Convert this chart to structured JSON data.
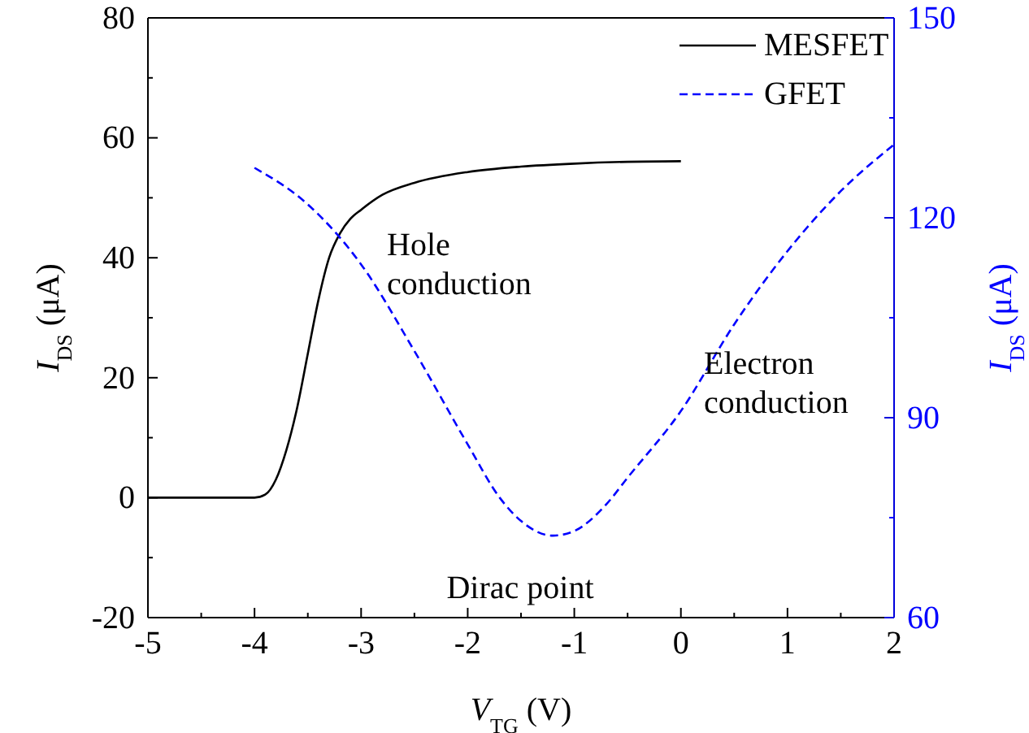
{
  "chart_data": {
    "type": "line",
    "xlabel": "V$_{TG}$ (V)",
    "ylabel": "I$_{DS}$ (μA)",
    "y2label": "I$_{DS}$ (μA)",
    "xlim": [
      -5,
      2
    ],
    "xticks": [
      -5,
      -4,
      -3,
      -2,
      -1,
      0,
      1,
      2
    ],
    "ylim": [
      -20,
      80
    ],
    "yticks": [
      -20,
      0,
      20,
      40,
      60,
      80
    ],
    "y2lim": [
      60,
      150
    ],
    "y2ticks": [
      60,
      90,
      120,
      150
    ],
    "legend": "top right",
    "grid": false,
    "annotations": [
      "Hole\nconduction",
      "Electron\nconduction",
      "Dirac point"
    ],
    "series": [
      {
        "name": "MESFET",
        "color": "#000000",
        "line_style": "solid",
        "x": [
          -5,
          -4,
          -3.9,
          -3.8,
          -3.7,
          -3.6,
          -3.5,
          -3.4,
          -3.3,
          -3.2,
          -3.1,
          -3,
          -2.8,
          -2.5,
          -2,
          -1.5,
          -1,
          -0.5,
          0
        ],
        "values": [
          0,
          0,
          0.5,
          3,
          8,
          15,
          24,
          33,
          40,
          44,
          46.5,
          48,
          50.5,
          52.5,
          54.3,
          55.2,
          55.7,
          56,
          56.1
        ]
      },
      {
        "name": "GFET",
        "color": "#0000ff",
        "line_style": "dashed",
        "axis": "y2",
        "x": [
          -4,
          -3.5,
          -3,
          -2.5,
          -2,
          -1.7,
          -1.5,
          -1.2,
          -1,
          -0.7,
          -0.5,
          0,
          0.5,
          1,
          1.5,
          2
        ],
        "values": [
          127.5,
          122,
          113,
          100,
          86,
          78,
          74.5,
          72.3,
          73,
          77,
          81,
          91,
          104,
          115,
          124,
          131
        ]
      }
    ]
  }
}
